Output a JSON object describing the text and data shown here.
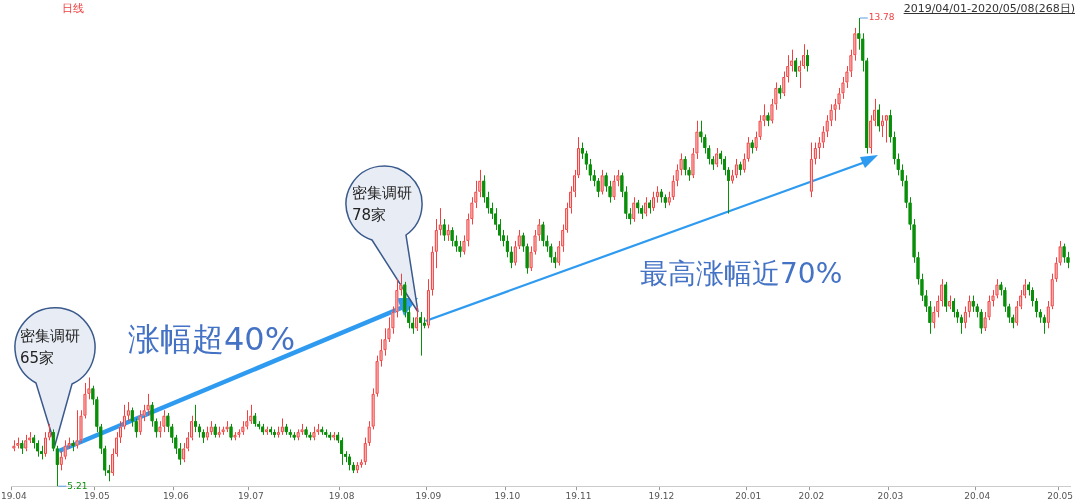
{
  "chart_data": {
    "type": "candlestick",
    "tick_labels": "x",
    "categories": [
      "19.04",
      null,
      null,
      null,
      null,
      null,
      null,
      null,
      null,
      null,
      null,
      null,
      null,
      null,
      null,
      null,
      null,
      null,
      null,
      null,
      null,
      "19.05",
      null,
      null,
      null,
      null,
      null,
      null,
      null,
      null,
      null,
      null,
      null,
      null,
      null,
      null,
      null,
      null,
      null,
      null,
      null,
      "19.06",
      null,
      null,
      null,
      null,
      null,
      null,
      null,
      null,
      null,
      null,
      null,
      null,
      null,
      null,
      null,
      null,
      null,
      null,
      "19.07",
      null,
      null,
      null,
      null,
      null,
      null,
      null,
      null,
      null,
      null,
      null,
      null,
      null,
      null,
      null,
      null,
      null,
      null,
      null,
      null,
      null,
      null,
      "19.08",
      null,
      null,
      null,
      null,
      null,
      null,
      null,
      null,
      null,
      null,
      null,
      null,
      null,
      null,
      null,
      null,
      null,
      null,
      null,
      null,
      null,
      "19.09",
      null,
      null,
      null,
      null,
      null,
      null,
      null,
      null,
      null,
      null,
      null,
      null,
      null,
      null,
      null,
      null,
      null,
      null,
      null,
      "19.10",
      null,
      null,
      null,
      null,
      null,
      null,
      null,
      null,
      null,
      null,
      null,
      null,
      null,
      null,
      null,
      null,
      null,
      "19.11",
      null,
      null,
      null,
      null,
      null,
      null,
      null,
      null,
      null,
      null,
      null,
      null,
      null,
      null,
      null,
      null,
      null,
      null,
      null,
      null,
      "19.12",
      null,
      null,
      null,
      null,
      null,
      null,
      null,
      null,
      null,
      null,
      null,
      null,
      null,
      null,
      null,
      null,
      null,
      null,
      null,
      null,
      null,
      "20.01",
      null,
      null,
      null,
      null,
      null,
      null,
      null,
      null,
      null,
      null,
      null,
      null,
      null,
      null,
      null,
      "20.02",
      null,
      null,
      null,
      null,
      null,
      null,
      null,
      null,
      null,
      null,
      null,
      null,
      null,
      null,
      null,
      null,
      null,
      null,
      null,
      "20.03",
      null,
      null,
      null,
      null,
      null,
      null,
      null,
      null,
      null,
      null,
      null,
      null,
      null,
      null,
      null,
      null,
      null,
      null,
      null,
      null,
      null,
      "20.04",
      null,
      null,
      null,
      null,
      null,
      null,
      null,
      null,
      null,
      null,
      null,
      null,
      null,
      null,
      null,
      null,
      null,
      null,
      null,
      null,
      "20.05",
      null,
      null
    ],
    "ohlc": [
      [
        5.9,
        6.05,
        5.85,
        5.95
      ],
      [
        5.95,
        6.1,
        5.9,
        6.0
      ],
      [
        6.0,
        6.05,
        5.8,
        5.9
      ],
      [
        5.9,
        6.15,
        5.85,
        6.05
      ],
      [
        6.05,
        6.2,
        6.0,
        6.1
      ],
      [
        6.1,
        6.15,
        5.9,
        6.0
      ],
      [
        6.0,
        6.05,
        5.75,
        5.85
      ],
      [
        5.85,
        5.95,
        5.7,
        5.8
      ],
      [
        5.8,
        6.2,
        5.75,
        6.1
      ],
      [
        6.1,
        6.35,
        6.05,
        6.2
      ],
      [
        6.2,
        6.25,
        5.85,
        5.9
      ],
      [
        5.9,
        5.95,
        5.21,
        5.6
      ],
      [
        5.6,
        5.85,
        5.5,
        5.75
      ],
      [
        5.75,
        6.05,
        5.7,
        5.95
      ],
      [
        5.95,
        6.1,
        5.9,
        6.0
      ],
      [
        6.0,
        6.05,
        5.85,
        5.95
      ],
      [
        5.95,
        6.6,
        5.9,
        6.05
      ],
      [
        6.05,
        6.6,
        6.0,
        6.5
      ],
      [
        6.5,
        7.1,
        6.45,
        6.9
      ],
      [
        6.9,
        7.2,
        6.8,
        7.0
      ],
      [
        7.0,
        7.05,
        6.7,
        6.8
      ],
      [
        6.8,
        6.85,
        6.2,
        6.3
      ],
      [
        6.3,
        6.35,
        5.8,
        5.9
      ],
      [
        5.9,
        5.95,
        5.4,
        5.5
      ],
      [
        5.5,
        5.6,
        5.3,
        5.45
      ],
      [
        5.45,
        5.9,
        5.4,
        5.8
      ],
      [
        5.8,
        6.2,
        5.75,
        6.1
      ],
      [
        6.1,
        6.4,
        6.0,
        6.3
      ],
      [
        6.3,
        6.7,
        6.25,
        6.5
      ],
      [
        6.5,
        6.75,
        6.4,
        6.6
      ],
      [
        6.6,
        6.65,
        6.3,
        6.4
      ],
      [
        6.4,
        6.45,
        6.1,
        6.2
      ],
      [
        6.2,
        6.6,
        6.15,
        6.5
      ],
      [
        6.5,
        6.7,
        6.4,
        6.6
      ],
      [
        6.6,
        6.9,
        6.5,
        6.7
      ],
      [
        6.7,
        6.75,
        6.3,
        6.4
      ],
      [
        6.4,
        6.45,
        6.1,
        6.2
      ],
      [
        6.2,
        6.4,
        6.1,
        6.3
      ],
      [
        6.3,
        6.6,
        6.2,
        6.5
      ],
      [
        6.5,
        6.55,
        6.2,
        6.3
      ],
      [
        6.3,
        6.35,
        6.0,
        6.1
      ],
      [
        6.1,
        6.15,
        5.8,
        5.9
      ],
      [
        5.9,
        6.0,
        5.6,
        5.7
      ],
      [
        5.7,
        6.0,
        5.65,
        5.9
      ],
      [
        5.9,
        6.2,
        5.85,
        6.1
      ],
      [
        6.1,
        6.5,
        6.05,
        6.4
      ],
      [
        6.4,
        6.7,
        6.2,
        6.3
      ],
      [
        6.3,
        6.35,
        6.1,
        6.2
      ],
      [
        6.2,
        6.25,
        6.0,
        6.1
      ],
      [
        6.1,
        6.3,
        6.05,
        6.2
      ],
      [
        6.2,
        6.4,
        6.15,
        6.3
      ],
      [
        6.3,
        6.35,
        6.1,
        6.15
      ],
      [
        6.15,
        6.3,
        6.1,
        6.2
      ],
      [
        6.2,
        6.3,
        6.15,
        6.25
      ],
      [
        6.25,
        6.4,
        6.2,
        6.3
      ],
      [
        6.3,
        6.35,
        6.05,
        6.1
      ],
      [
        6.1,
        6.2,
        6.05,
        6.15
      ],
      [
        6.15,
        6.25,
        6.1,
        6.2
      ],
      [
        6.2,
        6.4,
        6.15,
        6.3
      ],
      [
        6.3,
        6.6,
        6.25,
        6.4
      ],
      [
        6.4,
        6.7,
        6.35,
        6.5
      ],
      [
        6.5,
        6.55,
        6.3,
        6.35
      ],
      [
        6.35,
        6.4,
        6.25,
        6.3
      ],
      [
        6.3,
        6.35,
        6.15,
        6.2
      ],
      [
        6.2,
        6.3,
        6.15,
        6.25
      ],
      [
        6.25,
        6.3,
        6.15,
        6.2
      ],
      [
        6.2,
        6.25,
        6.1,
        6.15
      ],
      [
        6.15,
        6.3,
        6.1,
        6.2
      ],
      [
        6.2,
        6.45,
        6.15,
        6.3
      ],
      [
        6.3,
        6.35,
        6.15,
        6.2
      ],
      [
        6.2,
        6.25,
        6.1,
        6.15
      ],
      [
        6.15,
        6.2,
        6.05,
        6.1
      ],
      [
        6.1,
        6.25,
        6.05,
        6.2
      ],
      [
        6.2,
        6.35,
        6.15,
        6.25
      ],
      [
        6.25,
        6.3,
        6.1,
        6.15
      ],
      [
        6.15,
        6.2,
        6.05,
        6.1
      ],
      [
        6.1,
        6.3,
        6.05,
        6.2
      ],
      [
        6.2,
        6.35,
        6.15,
        6.25
      ],
      [
        6.25,
        6.3,
        6.15,
        6.2
      ],
      [
        6.2,
        6.25,
        6.1,
        6.15
      ],
      [
        6.15,
        6.2,
        6.05,
        6.1
      ],
      [
        6.1,
        6.2,
        6.05,
        6.15
      ],
      [
        6.15,
        6.2,
        6.0,
        6.05
      ],
      [
        6.05,
        6.1,
        5.6,
        5.8
      ],
      [
        5.8,
        5.85,
        5.65,
        5.75
      ],
      [
        5.75,
        5.8,
        5.5,
        5.6
      ],
      [
        5.6,
        5.65,
        5.45,
        5.5
      ],
      [
        5.5,
        5.65,
        5.45,
        5.6
      ],
      [
        5.6,
        5.7,
        5.55,
        5.65
      ],
      [
        5.65,
        6.1,
        5.6,
        6.0
      ],
      [
        6.0,
        6.4,
        5.95,
        6.3
      ],
      [
        6.3,
        7.0,
        6.25,
        6.9
      ],
      [
        6.9,
        7.6,
        6.85,
        7.5
      ],
      [
        7.5,
        7.9,
        7.4,
        7.7
      ],
      [
        7.7,
        8.1,
        7.6,
        7.9
      ],
      [
        7.9,
        8.3,
        7.85,
        8.1
      ],
      [
        8.1,
        8.5,
        8.0,
        8.4
      ],
      [
        8.4,
        9.0,
        8.3,
        8.8
      ],
      [
        8.8,
        9.1,
        8.7,
        8.9
      ],
      [
        8.9,
        8.95,
        8.3,
        8.4
      ],
      [
        8.4,
        8.5,
        8.1,
        8.2
      ],
      [
        8.2,
        8.3,
        8.0,
        8.1
      ],
      [
        8.1,
        8.5,
        8.05,
        8.3
      ],
      [
        8.3,
        8.4,
        7.6,
        8.2
      ],
      [
        8.2,
        8.3,
        8.1,
        8.15
      ],
      [
        8.15,
        9.0,
        8.1,
        8.8
      ],
      [
        8.8,
        9.6,
        8.7,
        9.5
      ],
      [
        9.5,
        10.1,
        9.2,
        9.9
      ],
      [
        9.9,
        10.3,
        9.8,
        10.0
      ],
      [
        10.0,
        10.1,
        9.7,
        9.8
      ],
      [
        9.8,
        10.0,
        9.7,
        9.9
      ],
      [
        9.9,
        9.95,
        9.6,
        9.7
      ],
      [
        9.7,
        9.8,
        9.5,
        9.6
      ],
      [
        9.6,
        9.7,
        9.4,
        9.5
      ],
      [
        9.5,
        9.8,
        9.45,
        9.7
      ],
      [
        9.7,
        10.2,
        9.6,
        10.1
      ],
      [
        10.1,
        10.5,
        10.0,
        10.4
      ],
      [
        10.4,
        10.8,
        10.3,
        10.6
      ],
      [
        10.6,
        11.0,
        10.5,
        10.8
      ],
      [
        10.8,
        10.9,
        10.4,
        10.5
      ],
      [
        10.5,
        10.6,
        10.2,
        10.3
      ],
      [
        10.3,
        10.4,
        10.1,
        10.2
      ],
      [
        10.2,
        10.3,
        9.9,
        10.0
      ],
      [
        10.0,
        10.1,
        9.7,
        9.8
      ],
      [
        9.8,
        9.9,
        9.6,
        9.7
      ],
      [
        9.7,
        9.8,
        9.4,
        9.5
      ],
      [
        9.5,
        9.6,
        9.2,
        9.3
      ],
      [
        9.3,
        9.7,
        9.25,
        9.6
      ],
      [
        9.6,
        9.9,
        9.55,
        9.8
      ],
      [
        9.8,
        9.85,
        9.5,
        9.6
      ],
      [
        9.6,
        9.65,
        9.1,
        9.2
      ],
      [
        9.2,
        9.6,
        9.15,
        9.5
      ],
      [
        9.5,
        9.9,
        9.45,
        9.8
      ],
      [
        9.8,
        10.1,
        9.7,
        10.0
      ],
      [
        10.0,
        10.05,
        9.6,
        9.7
      ],
      [
        9.7,
        9.8,
        9.5,
        9.6
      ],
      [
        9.6,
        9.65,
        9.3,
        9.4
      ],
      [
        9.4,
        9.5,
        9.2,
        9.3
      ],
      [
        9.3,
        9.7,
        9.25,
        9.6
      ],
      [
        9.6,
        10.0,
        9.5,
        9.9
      ],
      [
        9.9,
        10.4,
        9.85,
        10.3
      ],
      [
        10.3,
        10.7,
        10.2,
        10.6
      ],
      [
        10.6,
        11.0,
        10.5,
        10.9
      ],
      [
        10.9,
        11.6,
        10.85,
        11.4
      ],
      [
        11.4,
        11.5,
        11.2,
        11.3
      ],
      [
        11.3,
        11.35,
        11.0,
        11.1
      ],
      [
        11.1,
        11.2,
        10.8,
        10.9
      ],
      [
        10.9,
        11.0,
        10.7,
        10.8
      ],
      [
        10.8,
        10.85,
        10.5,
        10.6
      ],
      [
        10.6,
        11.0,
        10.55,
        10.9
      ],
      [
        10.9,
        10.95,
        10.6,
        10.7
      ],
      [
        10.7,
        10.8,
        10.4,
        10.5
      ],
      [
        10.5,
        10.9,
        10.45,
        10.8
      ],
      [
        10.8,
        11.0,
        10.7,
        10.9
      ],
      [
        10.9,
        10.95,
        10.5,
        10.6
      ],
      [
        10.6,
        10.7,
        10.1,
        10.2
      ],
      [
        10.2,
        10.3,
        10.0,
        10.1
      ],
      [
        10.1,
        10.5,
        10.05,
        10.4
      ],
      [
        10.4,
        10.45,
        10.2,
        10.3
      ],
      [
        10.3,
        10.35,
        10.1,
        10.2
      ],
      [
        10.2,
        10.5,
        10.15,
        10.4
      ],
      [
        10.4,
        10.45,
        10.2,
        10.3
      ],
      [
        10.3,
        10.6,
        10.25,
        10.5
      ],
      [
        10.5,
        10.7,
        10.4,
        10.6
      ],
      [
        10.6,
        10.65,
        10.4,
        10.5
      ],
      [
        10.5,
        10.55,
        10.3,
        10.4
      ],
      [
        10.4,
        10.6,
        10.35,
        10.5
      ],
      [
        10.5,
        10.9,
        10.45,
        10.8
      ],
      [
        10.8,
        11.1,
        10.7,
        11.0
      ],
      [
        11.0,
        11.3,
        10.9,
        11.2
      ],
      [
        11.2,
        11.25,
        10.9,
        11.0
      ],
      [
        11.0,
        11.05,
        10.8,
        10.9
      ],
      [
        10.9,
        11.4,
        10.85,
        11.3
      ],
      [
        11.3,
        11.9,
        11.2,
        11.7
      ],
      [
        11.7,
        11.9,
        11.5,
        11.6
      ],
      [
        11.6,
        11.65,
        11.3,
        11.4
      ],
      [
        11.4,
        11.45,
        11.1,
        11.2
      ],
      [
        11.2,
        11.25,
        11.0,
        11.1
      ],
      [
        11.1,
        11.4,
        11.05,
        11.3
      ],
      [
        11.3,
        11.35,
        11.1,
        11.2
      ],
      [
        11.2,
        11.25,
        10.9,
        11.0
      ],
      [
        11.0,
        11.05,
        10.2,
        10.8
      ],
      [
        10.8,
        11.0,
        10.75,
        10.9
      ],
      [
        10.9,
        11.2,
        10.85,
        11.1
      ],
      [
        11.1,
        11.15,
        10.9,
        11.0
      ],
      [
        11.0,
        11.3,
        10.95,
        11.2
      ],
      [
        11.2,
        11.6,
        11.15,
        11.5
      ],
      [
        11.5,
        11.55,
        11.3,
        11.4
      ],
      [
        11.4,
        11.7,
        11.35,
        11.6
      ],
      [
        11.6,
        12.0,
        11.55,
        11.9
      ],
      [
        11.9,
        12.2,
        11.8,
        12.0
      ],
      [
        12.0,
        12.05,
        11.8,
        11.9
      ],
      [
        11.9,
        12.3,
        11.85,
        12.2
      ],
      [
        12.2,
        12.6,
        12.1,
        12.5
      ],
      [
        12.5,
        12.55,
        12.3,
        12.4
      ],
      [
        12.4,
        12.8,
        12.35,
        12.7
      ],
      [
        12.7,
        13.1,
        12.6,
        12.9
      ],
      [
        12.9,
        13.2,
        12.8,
        13.0
      ],
      [
        13.0,
        13.05,
        12.7,
        12.8
      ],
      [
        12.8,
        13.0,
        12.5,
        12.9
      ],
      [
        12.9,
        13.3,
        12.85,
        13.1
      ],
      [
        13.1,
        13.2,
        12.8,
        12.9
      ],
      [
        10.6,
        11.5,
        10.5,
        11.2
      ],
      [
        11.2,
        11.5,
        11.1,
        11.4
      ],
      [
        11.4,
        11.6,
        11.2,
        11.5
      ],
      [
        11.5,
        11.8,
        11.4,
        11.7
      ],
      [
        11.7,
        12.0,
        11.6,
        11.9
      ],
      [
        11.9,
        12.2,
        11.8,
        12.1
      ],
      [
        12.1,
        12.3,
        11.9,
        12.2
      ],
      [
        12.2,
        12.5,
        12.1,
        12.4
      ],
      [
        12.4,
        12.7,
        12.3,
        12.6
      ],
      [
        12.6,
        12.9,
        12.5,
        12.8
      ],
      [
        12.8,
        13.2,
        12.7,
        13.1
      ],
      [
        13.1,
        13.6,
        13.0,
        13.5
      ],
      [
        13.5,
        13.78,
        13.2,
        13.4
      ],
      [
        13.4,
        13.5,
        12.8,
        13.0
      ],
      [
        13.0,
        13.05,
        11.3,
        11.4
      ],
      [
        11.4,
        12.0,
        11.3,
        11.9
      ],
      [
        11.9,
        12.3,
        11.8,
        12.1
      ],
      [
        12.1,
        12.2,
        11.7,
        11.8
      ],
      [
        11.8,
        12.0,
        11.6,
        11.9
      ],
      [
        11.9,
        12.0,
        11.5,
        12.0
      ],
      [
        12.0,
        12.1,
        11.5,
        11.6
      ],
      [
        11.6,
        11.7,
        11.1,
        11.2
      ],
      [
        11.2,
        11.3,
        10.9,
        11.0
      ],
      [
        11.0,
        11.1,
        10.7,
        10.8
      ],
      [
        10.8,
        10.9,
        10.3,
        10.4
      ],
      [
        10.4,
        10.5,
        9.9,
        10.0
      ],
      [
        10.0,
        10.1,
        9.3,
        9.4
      ],
      [
        9.4,
        9.5,
        8.9,
        9.0
      ],
      [
        9.0,
        9.1,
        8.6,
        8.7
      ],
      [
        8.7,
        8.8,
        8.4,
        8.5
      ],
      [
        8.5,
        8.6,
        8.0,
        8.2
      ],
      [
        8.2,
        8.5,
        8.1,
        8.4
      ],
      [
        8.4,
        8.7,
        8.3,
        8.6
      ],
      [
        8.6,
        9.0,
        8.5,
        8.9
      ],
      [
        8.9,
        8.95,
        8.4,
        8.5
      ],
      [
        8.5,
        8.7,
        8.45,
        8.6
      ],
      [
        8.6,
        8.65,
        8.3,
        8.4
      ],
      [
        8.4,
        8.45,
        8.2,
        8.3
      ],
      [
        8.3,
        8.35,
        8.0,
        8.2
      ],
      [
        8.2,
        8.5,
        8.1,
        8.4
      ],
      [
        8.4,
        8.7,
        8.3,
        8.6
      ],
      [
        8.6,
        8.7,
        8.4,
        8.5
      ],
      [
        8.5,
        8.55,
        8.3,
        8.4
      ],
      [
        8.4,
        8.45,
        8.0,
        8.1
      ],
      [
        8.1,
        8.4,
        8.05,
        8.3
      ],
      [
        8.3,
        8.7,
        8.25,
        8.6
      ],
      [
        8.6,
        8.8,
        8.5,
        8.7
      ],
      [
        8.7,
        9.0,
        8.65,
        8.9
      ],
      [
        8.9,
        8.95,
        8.7,
        8.8
      ],
      [
        8.8,
        8.85,
        8.4,
        8.5
      ],
      [
        8.5,
        8.55,
        8.2,
        8.3
      ],
      [
        8.3,
        8.35,
        8.1,
        8.2
      ],
      [
        8.2,
        8.6,
        8.15,
        8.5
      ],
      [
        8.5,
        8.8,
        8.45,
        8.7
      ],
      [
        8.7,
        9.0,
        8.65,
        8.9
      ],
      [
        8.9,
        8.95,
        8.7,
        8.8
      ],
      [
        8.8,
        8.85,
        8.5,
        8.6
      ],
      [
        8.6,
        8.65,
        8.3,
        8.4
      ],
      [
        8.4,
        8.45,
        8.2,
        8.3
      ],
      [
        8.3,
        8.35,
        8.0,
        8.2
      ],
      [
        8.2,
        8.6,
        8.1,
        8.5
      ],
      [
        8.5,
        9.1,
        8.45,
        9.0
      ],
      [
        9.0,
        9.4,
        8.95,
        9.3
      ],
      [
        9.3,
        9.7,
        9.25,
        9.6
      ],
      [
        9.6,
        9.65,
        9.3,
        9.4
      ],
      [
        9.4,
        9.5,
        9.2,
        9.3
      ]
    ],
    "annotations": [
      "日线",
      "2019/04/01-2020/05/08(268日)",
      "13.78",
      "5.21",
      "密集调研\n65家",
      "密集调研\n78家",
      "涨幅超40%",
      "最高涨幅近70%"
    ]
  }
}
